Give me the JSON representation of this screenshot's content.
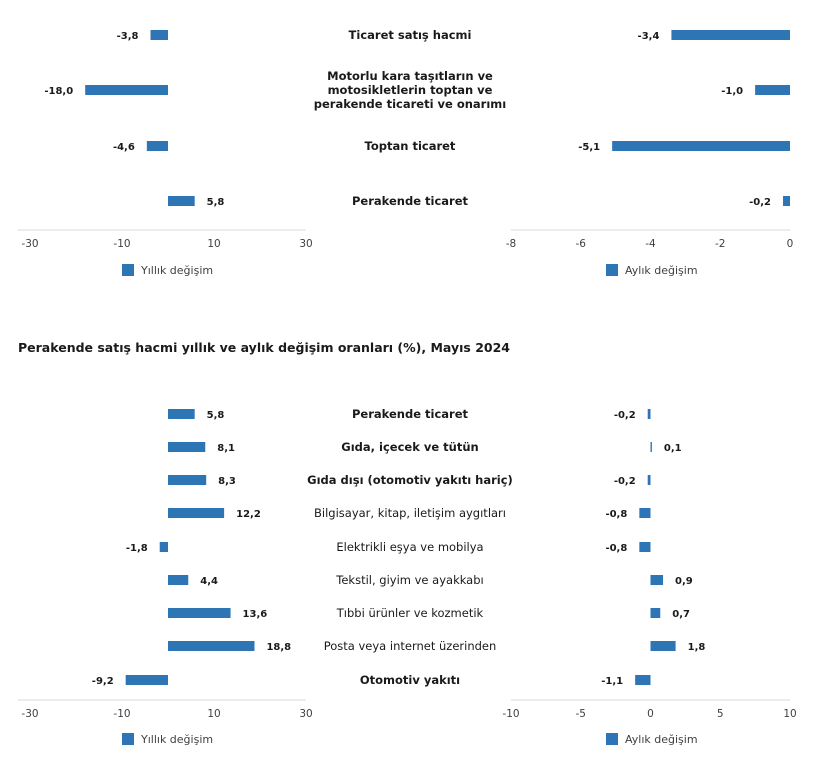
{
  "section_title": "Perakende satış hacmi yıllık ve aylık değişim oranları (%), Mayıs 2024",
  "colors": {
    "bar": "#2e75b6",
    "axis": "#d9d9d9",
    "text": "#1a1a1a",
    "tick": "#404040"
  },
  "chart_data": [
    {
      "type": "bar",
      "orientation": "horizontal",
      "layout": "butterfly",
      "categories": [
        {
          "label": "Ticaret satış hacmi",
          "bold": true
        },
        {
          "label": "Motorlu kara taşıtların ve motosikletlerin toptan ve perakende ticareti ve onarımı",
          "lines": [
            "Motorlu kara taşıtların ve",
            "motosikletlerin toptan ve",
            "perakende ticareti ve onarımı"
          ],
          "bold": true
        },
        {
          "label": "Toptan ticaret",
          "bold": true
        },
        {
          "label": "Perakende ticaret",
          "bold": true
        }
      ],
      "left": {
        "series_name": "Yıllık değişim",
        "values": [
          -3.8,
          -18.0,
          -4.6,
          5.8
        ],
        "value_labels": [
          "-3,8",
          "-18,0",
          "-4,6",
          "5,8"
        ],
        "xlim": [
          -30,
          30
        ],
        "xticks": [
          -30,
          -10,
          10,
          30
        ],
        "xtick_labels": [
          "-30",
          "-10",
          "10",
          "30"
        ]
      },
      "right": {
        "series_name": "Aylık değişim",
        "values": [
          -3.4,
          -1.0,
          -5.1,
          -0.2
        ],
        "value_labels": [
          "-3,4",
          "-1,0",
          "-5,1",
          "-0,2"
        ],
        "xlim": [
          -8,
          0
        ],
        "xticks": [
          -8,
          -6,
          -4,
          -2,
          0
        ],
        "xtick_labels": [
          "-8",
          "-6",
          "-4",
          "-2",
          "0"
        ]
      }
    },
    {
      "type": "bar",
      "orientation": "horizontal",
      "layout": "butterfly",
      "title": "Perakende satış hacmi yıllık ve aylık değişim oranları (%), Mayıs 2024",
      "categories": [
        {
          "label": "Perakende ticaret",
          "bold": true
        },
        {
          "label": "Gıda, içecek ve tütün",
          "bold": true
        },
        {
          "label": "Gıda dışı (otomotiv yakıtı hariç)",
          "bold": true
        },
        {
          "label": "Bilgisayar, kitap, iletişim aygıtları",
          "bold": false
        },
        {
          "label": "Elektrikli eşya ve mobilya",
          "bold": false
        },
        {
          "label": "Tekstil, giyim ve ayakkabı",
          "bold": false
        },
        {
          "label": "Tıbbi ürünler ve kozmetik",
          "bold": false
        },
        {
          "label": "Posta veya internet üzerinden",
          "bold": false
        },
        {
          "label": "Otomotiv yakıtı",
          "bold": true
        }
      ],
      "left": {
        "series_name": "Yıllık değişim",
        "values": [
          5.8,
          8.1,
          8.3,
          12.2,
          -1.8,
          4.4,
          13.6,
          18.8,
          -9.2
        ],
        "value_labels": [
          "5,8",
          "8,1",
          "8,3",
          "12,2",
          "-1,8",
          "4,4",
          "13,6",
          "18,8",
          "-9,2"
        ],
        "xlim": [
          -30,
          30
        ],
        "xticks": [
          -30,
          -10,
          10,
          30
        ],
        "xtick_labels": [
          "-30",
          "-10",
          "10",
          "30"
        ]
      },
      "right": {
        "series_name": "Aylık değişim",
        "values": [
          -0.2,
          0.1,
          -0.2,
          -0.8,
          -0.8,
          0.9,
          0.7,
          1.8,
          -1.1
        ],
        "value_labels": [
          "-0,2",
          "0,1",
          "-0,2",
          "-0,8",
          "-0,8",
          "0,9",
          "0,7",
          "1,8",
          "-1,1"
        ],
        "xlim": [
          -10,
          10
        ],
        "xticks": [
          -10,
          -5,
          0,
          5,
          10
        ],
        "xtick_labels": [
          "-10",
          "-5",
          "0",
          "5",
          "10"
        ]
      }
    }
  ]
}
